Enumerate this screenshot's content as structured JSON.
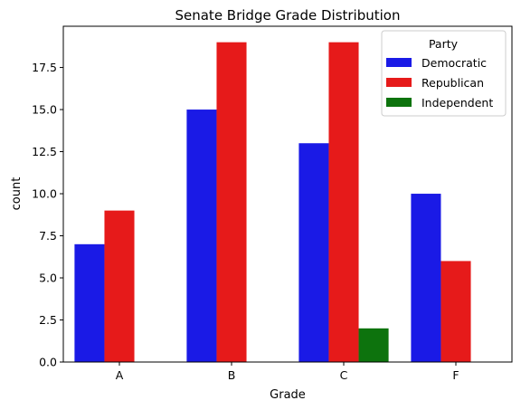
{
  "chart_data": {
    "type": "bar",
    "title": "Senate Bridge Grade Distribution",
    "xlabel": "Grade",
    "ylabel": "count",
    "categories": [
      "A",
      "B",
      "C",
      "F"
    ],
    "ylim": [
      0,
      19.95
    ],
    "yticks": [
      0.0,
      2.5,
      5.0,
      7.5,
      10.0,
      12.5,
      15.0,
      17.5
    ],
    "ytick_labels": [
      "0.0",
      "2.5",
      "5.0",
      "7.5",
      "10.0",
      "12.5",
      "15.0",
      "17.5"
    ],
    "grid": false,
    "legend": {
      "title": "Party",
      "placement": "top-right"
    },
    "series": [
      {
        "name": "Democratic",
        "color": "#1a1ae6",
        "values": [
          7,
          15,
          13,
          10
        ]
      },
      {
        "name": "Republican",
        "color": "#e61a1a",
        "values": [
          9,
          19,
          19,
          6
        ]
      },
      {
        "name": "Independent",
        "color": "#0d730d",
        "values": [
          0,
          0,
          2,
          0
        ]
      }
    ]
  }
}
